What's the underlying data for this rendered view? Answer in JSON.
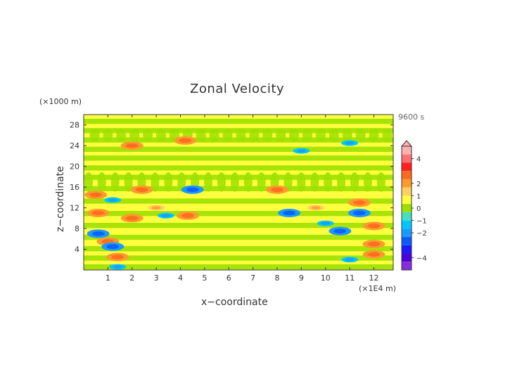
{
  "chart_data": {
    "type": "heatmap",
    "title": "Zonal Velocity",
    "xlabel": "x−coordinate",
    "ylabel": "z−coordinate",
    "x_units": "(×1E4 m)",
    "y_units": "(×1000 m)",
    "time_label": "9600 s",
    "xlim": [
      0,
      12.8
    ],
    "ylim": [
      0,
      30
    ],
    "x_ticks": [
      "1",
      "2",
      "3",
      "4",
      "5",
      "6",
      "7",
      "8",
      "9",
      "10",
      "11",
      "12"
    ],
    "y_ticks": [
      "4",
      "8",
      "12",
      "16",
      "20",
      "24",
      "28"
    ],
    "colorbar": {
      "levels": [
        {
          "value": -5,
          "color": "#8a2be2"
        },
        {
          "value": -4,
          "color": "#4b00d9"
        },
        {
          "value": -3,
          "color": "#1a1aff"
        },
        {
          "value": -2,
          "color": "#0a5cff"
        },
        {
          "value": -1.5,
          "color": "#1a9aff"
        },
        {
          "value": -1,
          "color": "#00c8ff"
        },
        {
          "value": -0.5,
          "color": "#44e0c0"
        },
        {
          "value": 0,
          "color": "#9de000"
        },
        {
          "value": 0.5,
          "color": "#ffff40"
        },
        {
          "value": 1,
          "color": "#ffd060"
        },
        {
          "value": 1.5,
          "color": "#ff9a30"
        },
        {
          "value": 2,
          "color": "#ff6a1a"
        },
        {
          "value": 3,
          "color": "#ff2020"
        },
        {
          "value": 4,
          "color": "#ff7070"
        },
        {
          "value": 5,
          "color": "#ffb0b0"
        }
      ],
      "tick_labels": [
        "4",
        "2",
        "1",
        "0",
        "−1",
        "−2",
        "−4"
      ]
    },
    "features": [
      {
        "x": 0.5,
        "z": 14.5,
        "value": 1.5
      },
      {
        "x": 0.6,
        "z": 11.0,
        "value": 1.5
      },
      {
        "x": 0.6,
        "z": 7.0,
        "value": -1.5
      },
      {
        "x": 1.0,
        "z": 5.5,
        "value": 1.5
      },
      {
        "x": 1.2,
        "z": 4.5,
        "value": -1.5
      },
      {
        "x": 1.4,
        "z": 2.5,
        "value": 1.5
      },
      {
        "x": 1.4,
        "z": 0.6,
        "value": -1.0
      },
      {
        "x": 1.2,
        "z": 13.5,
        "value": -1.0
      },
      {
        "x": 2.0,
        "z": 10.0,
        "value": 1.5
      },
      {
        "x": 2.4,
        "z": 15.5,
        "value": 1.5
      },
      {
        "x": 3.0,
        "z": 12.0,
        "value": 1.0
      },
      {
        "x": 3.4,
        "z": 10.5,
        "value": -1.0
      },
      {
        "x": 4.3,
        "z": 10.5,
        "value": 1.5
      },
      {
        "x": 4.5,
        "z": 15.5,
        "value": -1.5
      },
      {
        "x": 2.0,
        "z": 24.0,
        "value": 1.5
      },
      {
        "x": 4.2,
        "z": 25.0,
        "value": 1.5
      },
      {
        "x": 8.0,
        "z": 15.5,
        "value": 1.5
      },
      {
        "x": 8.5,
        "z": 11.0,
        "value": -1.5
      },
      {
        "x": 9.6,
        "z": 12.0,
        "value": 1.0
      },
      {
        "x": 10.0,
        "z": 9.0,
        "value": -1.0
      },
      {
        "x": 10.6,
        "z": 7.5,
        "value": -1.5
      },
      {
        "x": 11.4,
        "z": 13.0,
        "value": 1.5
      },
      {
        "x": 11.4,
        "z": 11.0,
        "value": -1.5
      },
      {
        "x": 12.0,
        "z": 8.5,
        "value": 1.5
      },
      {
        "x": 12.0,
        "z": 5.0,
        "value": 1.5
      },
      {
        "x": 12.0,
        "z": 3.0,
        "value": 1.5
      },
      {
        "x": 11.0,
        "z": 2.0,
        "value": -1.0
      },
      {
        "x": 9.0,
        "z": 23.0,
        "value": -1.0
      },
      {
        "x": 11.0,
        "z": 24.5,
        "value": -1.0
      }
    ]
  }
}
